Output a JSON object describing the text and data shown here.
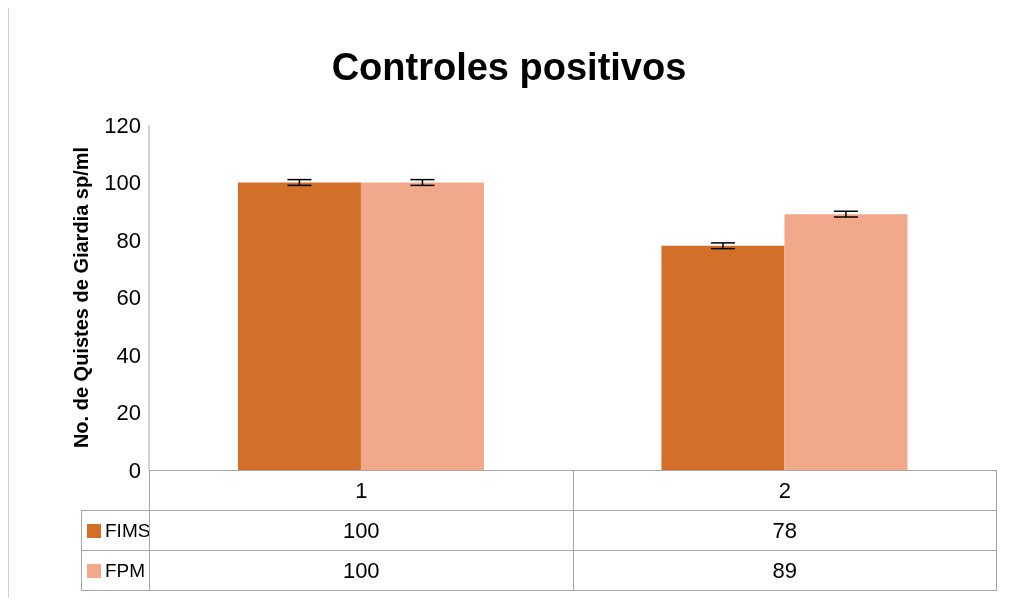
{
  "chart_data": {
    "type": "bar",
    "title": "Controles positivos",
    "ylabel": "No. de Quistes de Giardia sp/ml",
    "categories": [
      "1",
      "2"
    ],
    "series": [
      {
        "name": "FIMS",
        "color": "#d2702a",
        "values": [
          100,
          78
        ],
        "errors": [
          1,
          1
        ]
      },
      {
        "name": "FPM",
        "color": "#f1a88b",
        "values": [
          100,
          89
        ],
        "errors": [
          1,
          1
        ]
      }
    ],
    "ylim": [
      0,
      120
    ],
    "yticks": [
      0,
      20,
      40,
      60,
      80,
      100,
      120
    ],
    "grid": false,
    "legend": "bottom",
    "data_labels": true
  }
}
